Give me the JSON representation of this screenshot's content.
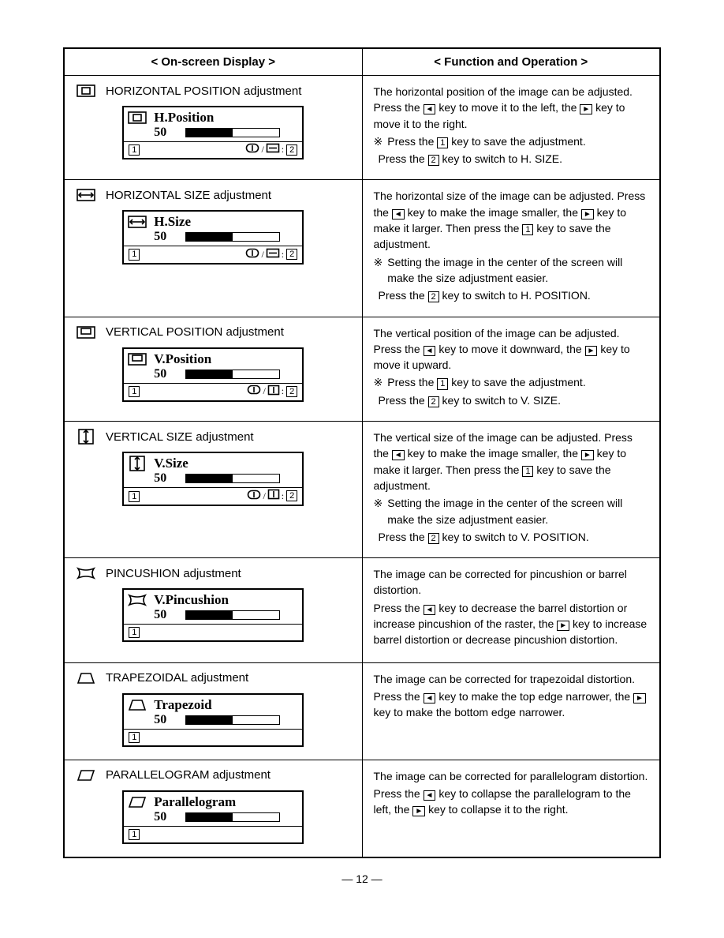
{
  "headers": {
    "left": "< On-screen Display >",
    "right": "< Function and Operation >"
  },
  "rows": [
    {
      "icon": "hpos",
      "title": "HORIZONTAL POSITION adjustment",
      "osd": {
        "icon": "hpos",
        "name": "H.Position",
        "value": "50",
        "bar_pct": 50,
        "bot_right_icons": [
          "ci",
          "divider",
          "hsize-mini",
          "colon"
        ],
        "bot_key": "2"
      },
      "desc_lines": [
        "The horizontal position of the image can be adjusted. Press the ◄ key to move it to the left, the ► key to move it to the right."
      ],
      "notes": [
        "Press the [1] key to save the adjustment.",
        "Press the [2] key to switch to H. SIZE."
      ]
    },
    {
      "icon": "hsize",
      "title": "HORIZONTAL SIZE adjustment",
      "osd": {
        "icon": "hsize",
        "name": "H.Size",
        "value": "50",
        "bar_pct": 50,
        "bot_right_icons": [
          "ci",
          "divider",
          "hsize-mini",
          "colon"
        ],
        "bot_key": "2"
      },
      "desc_lines": [
        "The horizontal size of the image can be adjusted. Press the ◄ key to make the image smaller, the ► key to make it larger. Then press the [1] key to save the adjustment."
      ],
      "notes": [
        "Setting the image in the center of the screen will make the size adjustment easier.",
        "Press the [2] key to switch to H. POSITION."
      ]
    },
    {
      "icon": "vpos",
      "title": "VERTICAL POSITION adjustment",
      "osd": {
        "icon": "vpos",
        "name": "V.Position",
        "value": "50",
        "bar_pct": 50,
        "bot_right_icons": [
          "ci",
          "divider",
          "vsize-mini",
          "colon"
        ],
        "bot_key": "2"
      },
      "desc_lines": [
        "The vertical position of the image can be adjusted. Press the ◄ key to move it downward, the ► key to move it upward."
      ],
      "notes": [
        "Press the [1] key to save the adjustment.",
        "Press the [2] key to switch to V. SIZE."
      ]
    },
    {
      "icon": "vsize",
      "title": "VERTICAL SIZE adjustment",
      "osd": {
        "icon": "vsize",
        "name": "V.Size",
        "value": "50",
        "bar_pct": 50,
        "bot_right_icons": [
          "ci",
          "divider",
          "vsize-mini",
          "colon"
        ],
        "bot_key": "2"
      },
      "desc_lines": [
        "The vertical size of the image can be adjusted. Press the ◄ key to make the image smaller, the ► key to make it larger. Then press the [1] key to save the adjustment."
      ],
      "notes": [
        "Setting the image in the center of the screen will make the size adjustment easier.",
        "Press the [2] key to switch to V. POSITION."
      ]
    },
    {
      "icon": "pincushion",
      "title": "PINCUSHION  adjustment",
      "osd": {
        "icon": "pincushion",
        "name": "V.Pincushion",
        "value": "50",
        "bar_pct": 50,
        "bot_right_icons": [],
        "bot_key": ""
      },
      "desc_lines": [
        "The image can be corrected for pincushion or barrel distortion.",
        "Press the ◄ key to decrease the barrel distortion or increase pincushion of the raster, the ► key to increase barrel distortion or decrease pincushion distortion."
      ],
      "notes": []
    },
    {
      "icon": "trapezoid",
      "title": "TRAPEZOIDAL  adjustment",
      "osd": {
        "icon": "trapezoid",
        "name": "Trapezoid",
        "value": "50",
        "bar_pct": 50,
        "bot_right_icons": [],
        "bot_key": ""
      },
      "desc_lines": [
        "The image can be corrected for trapezoidal distortion.",
        "Press the ◄ key to make the top edge narrower, the ► key to make the bottom edge narrower."
      ],
      "notes": []
    },
    {
      "icon": "parallelogram",
      "title": "PARALLELOGRAM  adjustment",
      "osd": {
        "icon": "parallelogram",
        "name": "Parallelogram",
        "value": "50",
        "bar_pct": 50,
        "bot_right_icons": [],
        "bot_key": ""
      },
      "desc_lines": [
        "The image can be corrected for parallelogram distortion.",
        "Press the ◄ key to collapse the parallelogram to the left, the ► key to collapse it to the right."
      ],
      "notes": []
    }
  ],
  "page_number": "— 12 —",
  "colors": {
    "text": "#000000",
    "bg": "#ffffff",
    "border": "#000000",
    "bar_fill": "#000000"
  }
}
